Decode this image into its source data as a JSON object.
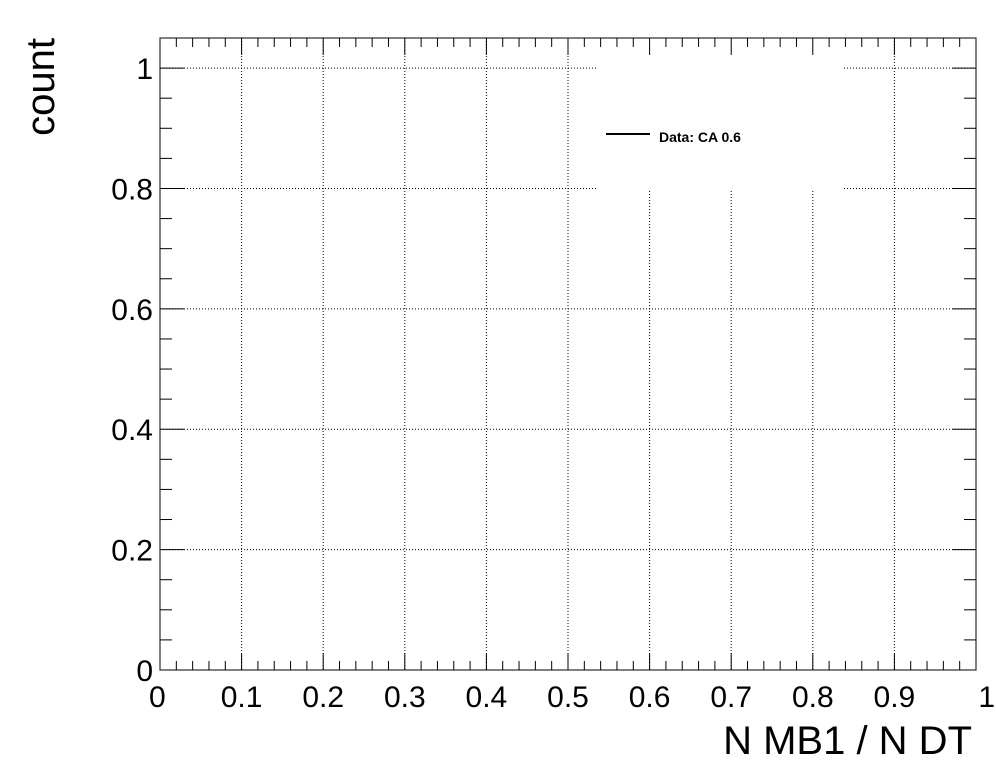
{
  "chart_data": {
    "type": "line",
    "title": "",
    "xlabel": "N MB1 / N DT",
    "ylabel": "count",
    "xlim": [
      0,
      1
    ],
    "ylim": [
      0,
      1.05
    ],
    "grid": true,
    "x_ticks": [
      "0",
      "0.1",
      "0.2",
      "0.3",
      "0.4",
      "0.5",
      "0.6",
      "0.7",
      "0.8",
      "0.9",
      "1"
    ],
    "y_ticks": [
      "0",
      "0.2",
      "0.4",
      "0.6",
      "0.8",
      "1"
    ],
    "legend_position": "top-right",
    "series": [
      {
        "name": "Data: CA 0.6",
        "x": [],
        "y": []
      }
    ]
  }
}
